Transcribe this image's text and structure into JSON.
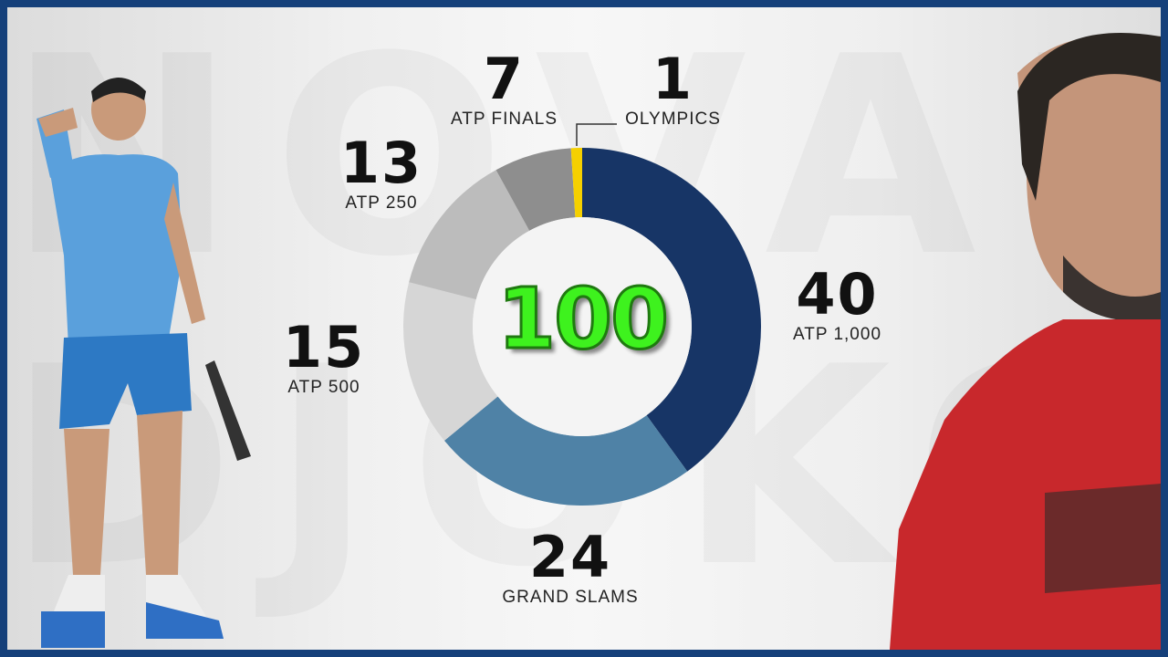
{
  "watermark": {
    "line1": "NOVAK",
    "line2": "DJOKOVIC"
  },
  "chart_data": {
    "type": "pie",
    "variant": "donut",
    "total_label": "100",
    "categories": [
      "ATP 1,000",
      "GRAND SLAMS",
      "ATP 500",
      "ATP 250",
      "ATP FINALS",
      "OLYMPICS"
    ],
    "values": [
      40,
      24,
      15,
      13,
      7,
      1
    ],
    "colors": [
      "#173566",
      "#4f82a6",
      "#d6d6d6",
      "#bcbcbc",
      "#8e8e8e",
      "#f5d000"
    ],
    "legend": "none",
    "data_labels": "outside"
  },
  "frame_color": "#15407a"
}
